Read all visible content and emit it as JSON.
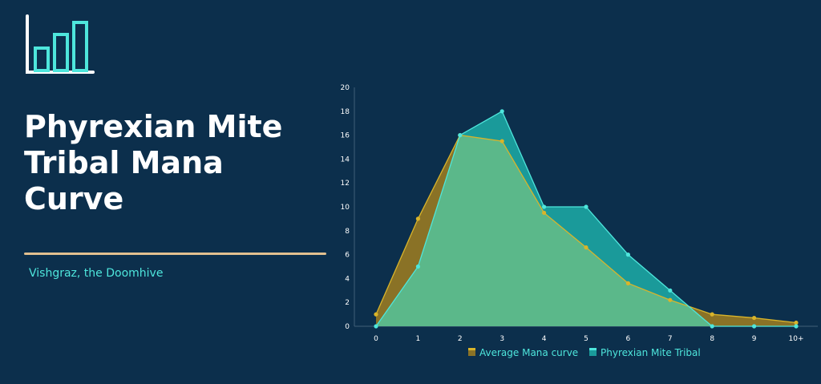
{
  "header": {
    "title": "Phyrexian Mite Tribal Mana Curve",
    "subtitle": "Vishgraz, the Doomhive"
  },
  "icons": {
    "logo": "bar-chart-icon"
  },
  "colors": {
    "background": "#0c2f4c",
    "accent": "#4ee6dc",
    "divider": "#e2c08f",
    "average_fill": "#8a7226",
    "average_line": "#d9b42a",
    "tribal_fill": "#1a9a9a",
    "tribal_line": "#4ee6dc",
    "overlap_fill": "#5bb88a"
  },
  "chart_data": {
    "type": "area",
    "categories": [
      "0",
      "1",
      "2",
      "3",
      "4",
      "5",
      "6",
      "7",
      "8",
      "9",
      "10+"
    ],
    "ylim": [
      0,
      20
    ],
    "yticks": [
      0,
      2,
      4,
      6,
      8,
      10,
      12,
      14,
      16,
      18,
      20
    ],
    "legend_position": "bottom",
    "series": [
      {
        "name": "Average Mana curve",
        "values": [
          1,
          9,
          16,
          15.5,
          9.5,
          6.6,
          3.6,
          2.2,
          1,
          0.7,
          0.3
        ]
      },
      {
        "name": "Phyrexian Mite Tribal",
        "values": [
          0,
          5,
          16,
          18,
          10,
          10,
          6,
          3,
          0,
          0,
          0
        ]
      }
    ]
  }
}
